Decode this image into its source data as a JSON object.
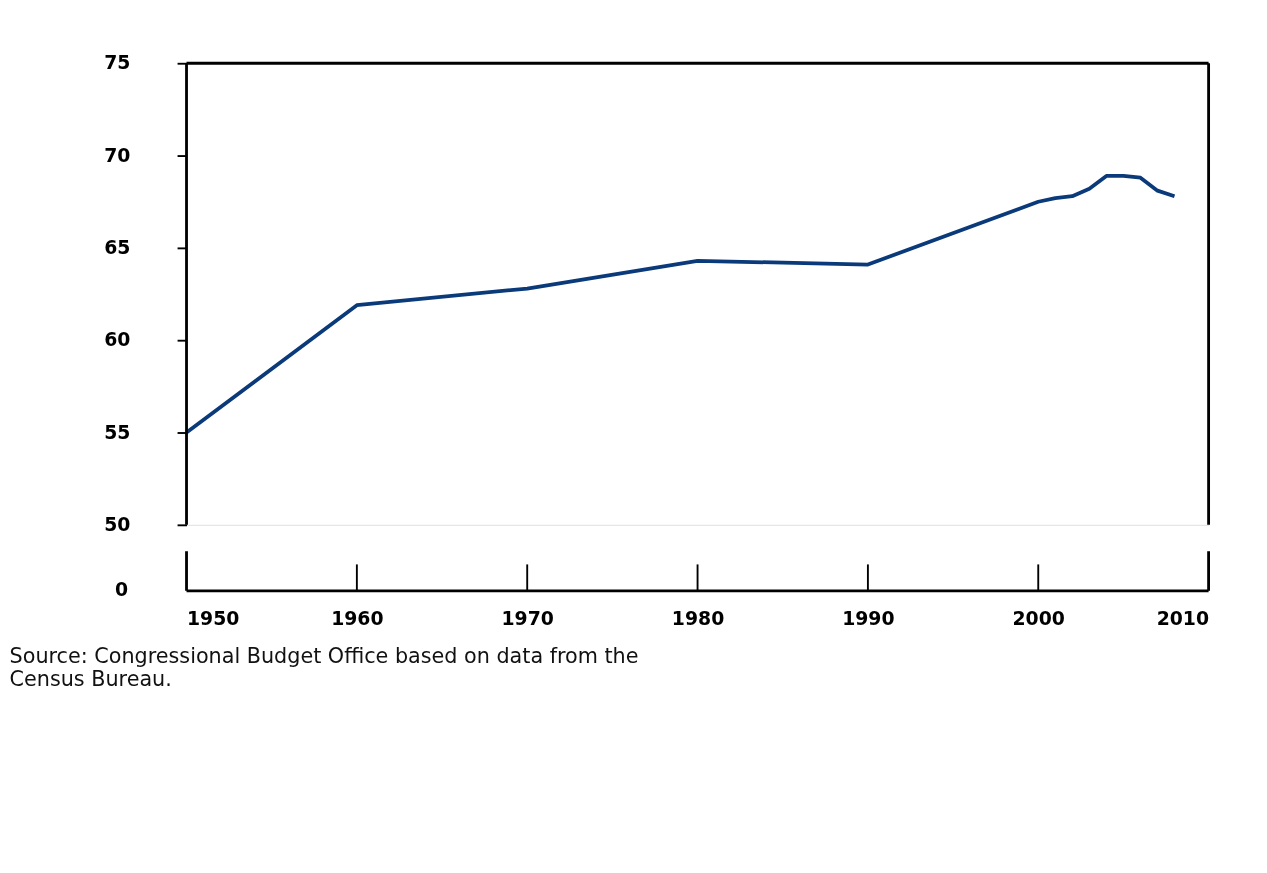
{
  "chart_data": {
    "type": "line",
    "x": [
      1950,
      1960,
      1970,
      1980,
      1990,
      2000,
      2001,
      2002,
      2003,
      2004,
      2005,
      2006,
      2007,
      2008
    ],
    "series": [
      {
        "color": "#0b3a7a",
        "values": [
          55.0,
          61.9,
          62.8,
          64.3,
          64.1,
          67.5,
          67.7,
          67.8,
          68.2,
          68.9,
          68.9,
          68.8,
          68.1,
          67.8
        ]
      }
    ],
    "xlim": [
      1950,
      2010
    ],
    "xticks": [
      1950,
      1960,
      1970,
      1980,
      1990,
      2000,
      2010
    ],
    "ylim": [
      50,
      75
    ],
    "yticks": [
      50,
      55,
      60,
      65,
      70,
      75
    ],
    "grid": false,
    "legend": false,
    "marker": "none",
    "line_style": "solid",
    "annotations": [
      "0",
      "Source:    Congressional Budget Office based on data from the\n                Census Bureau."
    ]
  }
}
